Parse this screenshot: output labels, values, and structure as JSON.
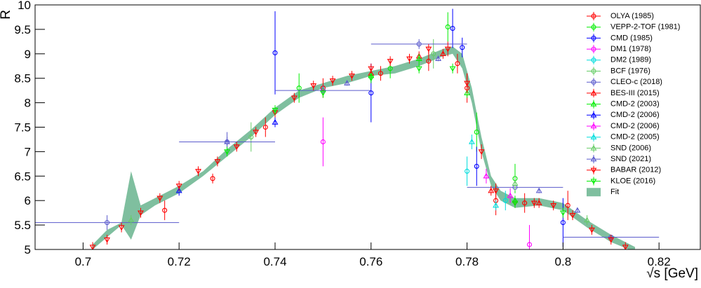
{
  "chart_data": {
    "type": "scatter",
    "xlabel": "√s [GeV]",
    "ylabel": "R",
    "xlim": [
      0.69,
      0.8286
    ],
    "ylim": [
      5,
      10
    ],
    "xticks": [
      0.7,
      0.72,
      0.74,
      0.76,
      0.78,
      0.8,
      0.82
    ],
    "yticks": [
      5,
      5.5,
      6,
      6.5,
      7,
      7.5,
      8,
      8.5,
      9,
      9.5,
      10
    ],
    "legend": "top-right",
    "series": [
      {
        "name": "OLYA (1985)",
        "color": "#ff0000",
        "marker": "circle",
        "x": [
          0.717,
          0.727,
          0.738,
          0.75,
          0.762,
          0.772,
          0.778,
          0.78,
          0.786,
          0.792,
          0.801
        ],
        "values": [
          5.8,
          6.45,
          7.5,
          8.3,
          8.6,
          8.85,
          8.8,
          8.3,
          6.0,
          5.95,
          5.9
        ],
        "yerr": [
          0.2,
          0.1,
          0.2,
          0.2,
          0.15,
          0.2,
          0.2,
          0.3,
          0.3,
          0.2,
          0.3
        ]
      },
      {
        "name": "VEPP-2-TOF (1981)",
        "color": "#00ee00",
        "marker": "circle",
        "x": [
          0.745,
          0.764,
          0.776,
          0.782,
          0.79
        ],
        "values": [
          8.3,
          8.7,
          9.55,
          7.4,
          6.45
        ],
        "yerr": [
          0.3,
          0.2,
          0.3,
          0.4,
          0.3
        ]
      },
      {
        "name": "CMD (1985)",
        "color": "#0000ff",
        "marker": "circle",
        "x": [
          0.74,
          0.76,
          0.777,
          0.779,
          0.782,
          0.8
        ],
        "values": [
          9.02,
          8.2,
          9.52,
          9.13,
          6.7,
          5.55
        ],
        "yerr": [
          0.85,
          0.6,
          0.4,
          0.2,
          0.4,
          0.5
        ]
      },
      {
        "name": "DM1 (1978)",
        "color": "#ff00ff",
        "marker": "circle",
        "x": [
          0.75,
          0.793
        ],
        "values": [
          7.2,
          5.1
        ],
        "yerr": [
          0.5,
          0.4
        ]
      },
      {
        "name": "DM2 (1989)",
        "color": "#00dddd",
        "marker": "circle",
        "x": [
          0.78,
          0.788
        ],
        "values": [
          6.6,
          6.0
        ],
        "yerr": [
          0.3,
          0.2
        ]
      },
      {
        "name": "BCF (1976)",
        "color": "#66cc66",
        "marker": "circle",
        "x": [
          0.735,
          0.773
        ],
        "values": [
          7.3,
          9.0
        ],
        "yerr": [
          0.3,
          0.3
        ]
      },
      {
        "name": "CLEO-c (2018)",
        "color": "#5a5acc",
        "marker": "circle",
        "x": [
          0.705,
          0.73,
          0.75,
          0.77,
          0.79,
          0.81
        ],
        "values": [
          5.55,
          7.2,
          8.25,
          9.2,
          6.27,
          5.25
        ],
        "yerr": [
          0.15,
          0.2,
          0.1,
          0.1,
          0.05,
          0.05
        ],
        "xerr": [
          0.015,
          0.01,
          0.01,
          0.01,
          0.01,
          0.01
        ]
      },
      {
        "name": "BES-III (2015)",
        "color": "#ff0000",
        "marker": "triangle-up",
        "x": [
          0.76,
          0.77,
          0.775,
          0.785,
          0.795
        ],
        "values": [
          8.6,
          8.95,
          9.0,
          6.2,
          5.95
        ],
        "yerr": [
          0.1,
          0.1,
          0.1,
          0.1,
          0.1
        ]
      },
      {
        "name": "CMD-2 (2003)",
        "color": "#00ee00",
        "marker": "triangle-up",
        "x": [
          0.76,
          0.77,
          0.78,
          0.79
        ],
        "values": [
          8.55,
          8.9,
          8.2,
          6.0
        ],
        "yerr": [
          0.1,
          0.1,
          0.1,
          0.1
        ]
      },
      {
        "name": "CMD-2 (2006)",
        "color": "#0000ff",
        "marker": "triangle-up",
        "x": [
          0.72,
          0.74
        ],
        "values": [
          6.2,
          7.6
        ],
        "yerr": [
          0.1,
          0.1
        ]
      },
      {
        "name": "CMD-2 (2006)",
        "color": "#ff00ff",
        "marker": "triangle-up",
        "x": [
          0.784,
          0.789
        ],
        "values": [
          6.5,
          6.1
        ],
        "yerr": [
          0.15,
          0.15
        ]
      },
      {
        "name": "CMD-2 (2005)",
        "color": "#00dddd",
        "marker": "triangle-up",
        "x": [
          0.781,
          0.786
        ],
        "values": [
          7.2,
          5.9
        ],
        "yerr": [
          0.15,
          0.1
        ]
      },
      {
        "name": "SND (2006)",
        "color": "#66cc66",
        "marker": "triangle-up",
        "x": [
          0.71,
          0.79,
          0.805
        ],
        "values": [
          5.6,
          6.35,
          5.6
        ],
        "yerr": [
          0.1,
          0.15,
          0.1
        ]
      },
      {
        "name": "SND (2021)",
        "color": "#5a5acc",
        "marker": "triangle-up",
        "x": [
          0.73,
          0.755,
          0.774,
          0.795,
          0.803
        ],
        "values": [
          7.2,
          8.4,
          8.9,
          6.2,
          5.8
        ],
        "yerr": [
          0.1,
          0.05,
          0.05,
          0.05,
          0.05
        ]
      },
      {
        "name": "BABAR (2012)",
        "color": "#ff0000",
        "marker": "triangle-down",
        "x": [
          0.702,
          0.705,
          0.708,
          0.712,
          0.716,
          0.72,
          0.724,
          0.728,
          0.732,
          0.736,
          0.74,
          0.744,
          0.748,
          0.752,
          0.756,
          0.76,
          0.764,
          0.768,
          0.772,
          0.776,
          0.78,
          0.783,
          0.786,
          0.79,
          0.794,
          0.798,
          0.802,
          0.806,
          0.81,
          0.813
        ],
        "values": [
          5.05,
          5.2,
          5.45,
          5.75,
          6.05,
          6.3,
          6.6,
          6.8,
          7.1,
          7.4,
          7.8,
          8.1,
          8.35,
          8.45,
          8.55,
          8.7,
          8.85,
          8.9,
          9.1,
          9.1,
          8.4,
          7.0,
          6.2,
          5.95,
          5.95,
          5.9,
          5.7,
          5.4,
          5.2,
          5.05
        ],
        "yerr": [
          0.1,
          0.1,
          0.1,
          0.1,
          0.1,
          0.1,
          0.1,
          0.1,
          0.1,
          0.1,
          0.1,
          0.1,
          0.1,
          0.1,
          0.1,
          0.1,
          0.1,
          0.1,
          0.1,
          0.15,
          0.2,
          0.15,
          0.15,
          0.1,
          0.1,
          0.1,
          0.1,
          0.1,
          0.1,
          0.1
        ]
      },
      {
        "name": "KLOE (2016)",
        "color": "#00ee00",
        "marker": "triangle-down",
        "x": [
          0.73,
          0.74,
          0.75,
          0.76,
          0.77,
          0.777,
          0.79,
          0.8
        ],
        "values": [
          7.0,
          7.85,
          8.2,
          8.5,
          8.7,
          8.7,
          5.95,
          5.75
        ],
        "yerr": [
          0.1,
          0.1,
          0.1,
          0.1,
          0.1,
          0.1,
          0.1,
          0.1
        ]
      }
    ],
    "fit": {
      "name": "Fit",
      "color": "#7fbf9f",
      "x": [
        0.702,
        0.705,
        0.708,
        0.71,
        0.712,
        0.715,
        0.72,
        0.725,
        0.73,
        0.735,
        0.74,
        0.745,
        0.75,
        0.755,
        0.76,
        0.765,
        0.77,
        0.775,
        0.777,
        0.779,
        0.781,
        0.783,
        0.785,
        0.787,
        0.79,
        0.795,
        0.8,
        0.805,
        0.81,
        0.815
      ],
      "low": [
        5.0,
        5.25,
        5.5,
        5.2,
        5.7,
        5.9,
        6.15,
        6.5,
        6.9,
        7.3,
        7.75,
        8.1,
        8.3,
        8.4,
        8.55,
        8.6,
        8.75,
        8.95,
        9.0,
        8.7,
        8.0,
        7.0,
        6.3,
        6.0,
        5.85,
        5.9,
        5.8,
        5.45,
        5.15,
        4.95
      ],
      "high": [
        5.1,
        5.4,
        5.55,
        6.6,
        5.9,
        6.05,
        6.3,
        6.6,
        7.05,
        7.45,
        7.9,
        8.25,
        8.4,
        8.55,
        8.65,
        8.75,
        8.9,
        9.1,
        9.15,
        9.0,
        8.3,
        7.3,
        6.5,
        6.2,
        6.05,
        6.05,
        5.95,
        5.6,
        5.3,
        5.05
      ]
    }
  }
}
